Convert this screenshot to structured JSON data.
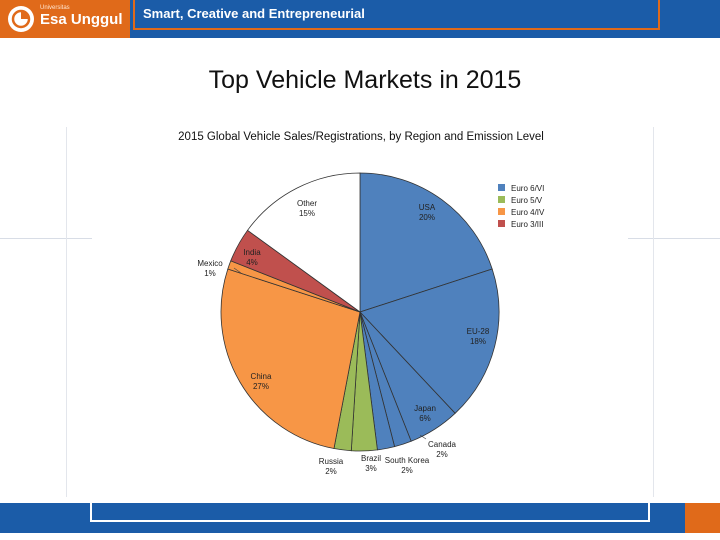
{
  "header": {
    "logo_small": "Universitas",
    "logo_text": "Esa Unggul",
    "tagline": "Smart, Creative and Entrepreneurial"
  },
  "slide": {
    "title": "Top Vehicle Markets in 2015"
  },
  "colors": {
    "header_blue": "#1b5ca8",
    "brand_orange": "#e06a1a",
    "euro6": "#4f81bd",
    "euro5": "#9bbb59",
    "euro4": "#f79646",
    "euro3": "#c0504d",
    "other": "#ffffff"
  },
  "chart_data": {
    "type": "pie",
    "title": "2015 Global Vehicle Sales/Registrations, by Region and Emission Level",
    "slices": [
      {
        "name": "USA",
        "value": 20,
        "label": "20%",
        "color": "#4f81bd"
      },
      {
        "name": "EU-28",
        "value": 18,
        "label": "18%",
        "color": "#4f81bd"
      },
      {
        "name": "Japan",
        "value": 6,
        "label": "6%",
        "color": "#4f81bd"
      },
      {
        "name": "Canada",
        "value": 2,
        "label": "2%",
        "color": "#4f81bd"
      },
      {
        "name": "South Korea",
        "value": 2,
        "label": "2%",
        "color": "#4f81bd"
      },
      {
        "name": "Brazil",
        "value": 3,
        "label": "3%",
        "color": "#9bbb59"
      },
      {
        "name": "Russia",
        "value": 2,
        "label": "2%",
        "color": "#9bbb59"
      },
      {
        "name": "China",
        "value": 27,
        "label": "27%",
        "color": "#f79646"
      },
      {
        "name": "Mexico",
        "value": 1,
        "label": "1%",
        "color": "#f79646"
      },
      {
        "name": "India",
        "value": 4,
        "label": "4%",
        "color": "#c0504d"
      },
      {
        "name": "Other",
        "value": 15,
        "label": "15%",
        "color": "#ffffff"
      }
    ],
    "legend": [
      {
        "label": "Euro 6/VI",
        "color": "#4f81bd"
      },
      {
        "label": "Euro 5/V",
        "color": "#9bbb59"
      },
      {
        "label": "Euro 4/IV",
        "color": "#f79646"
      },
      {
        "label": "Euro 3/III",
        "color": "#c0504d"
      }
    ],
    "legend_position": "top-right"
  }
}
